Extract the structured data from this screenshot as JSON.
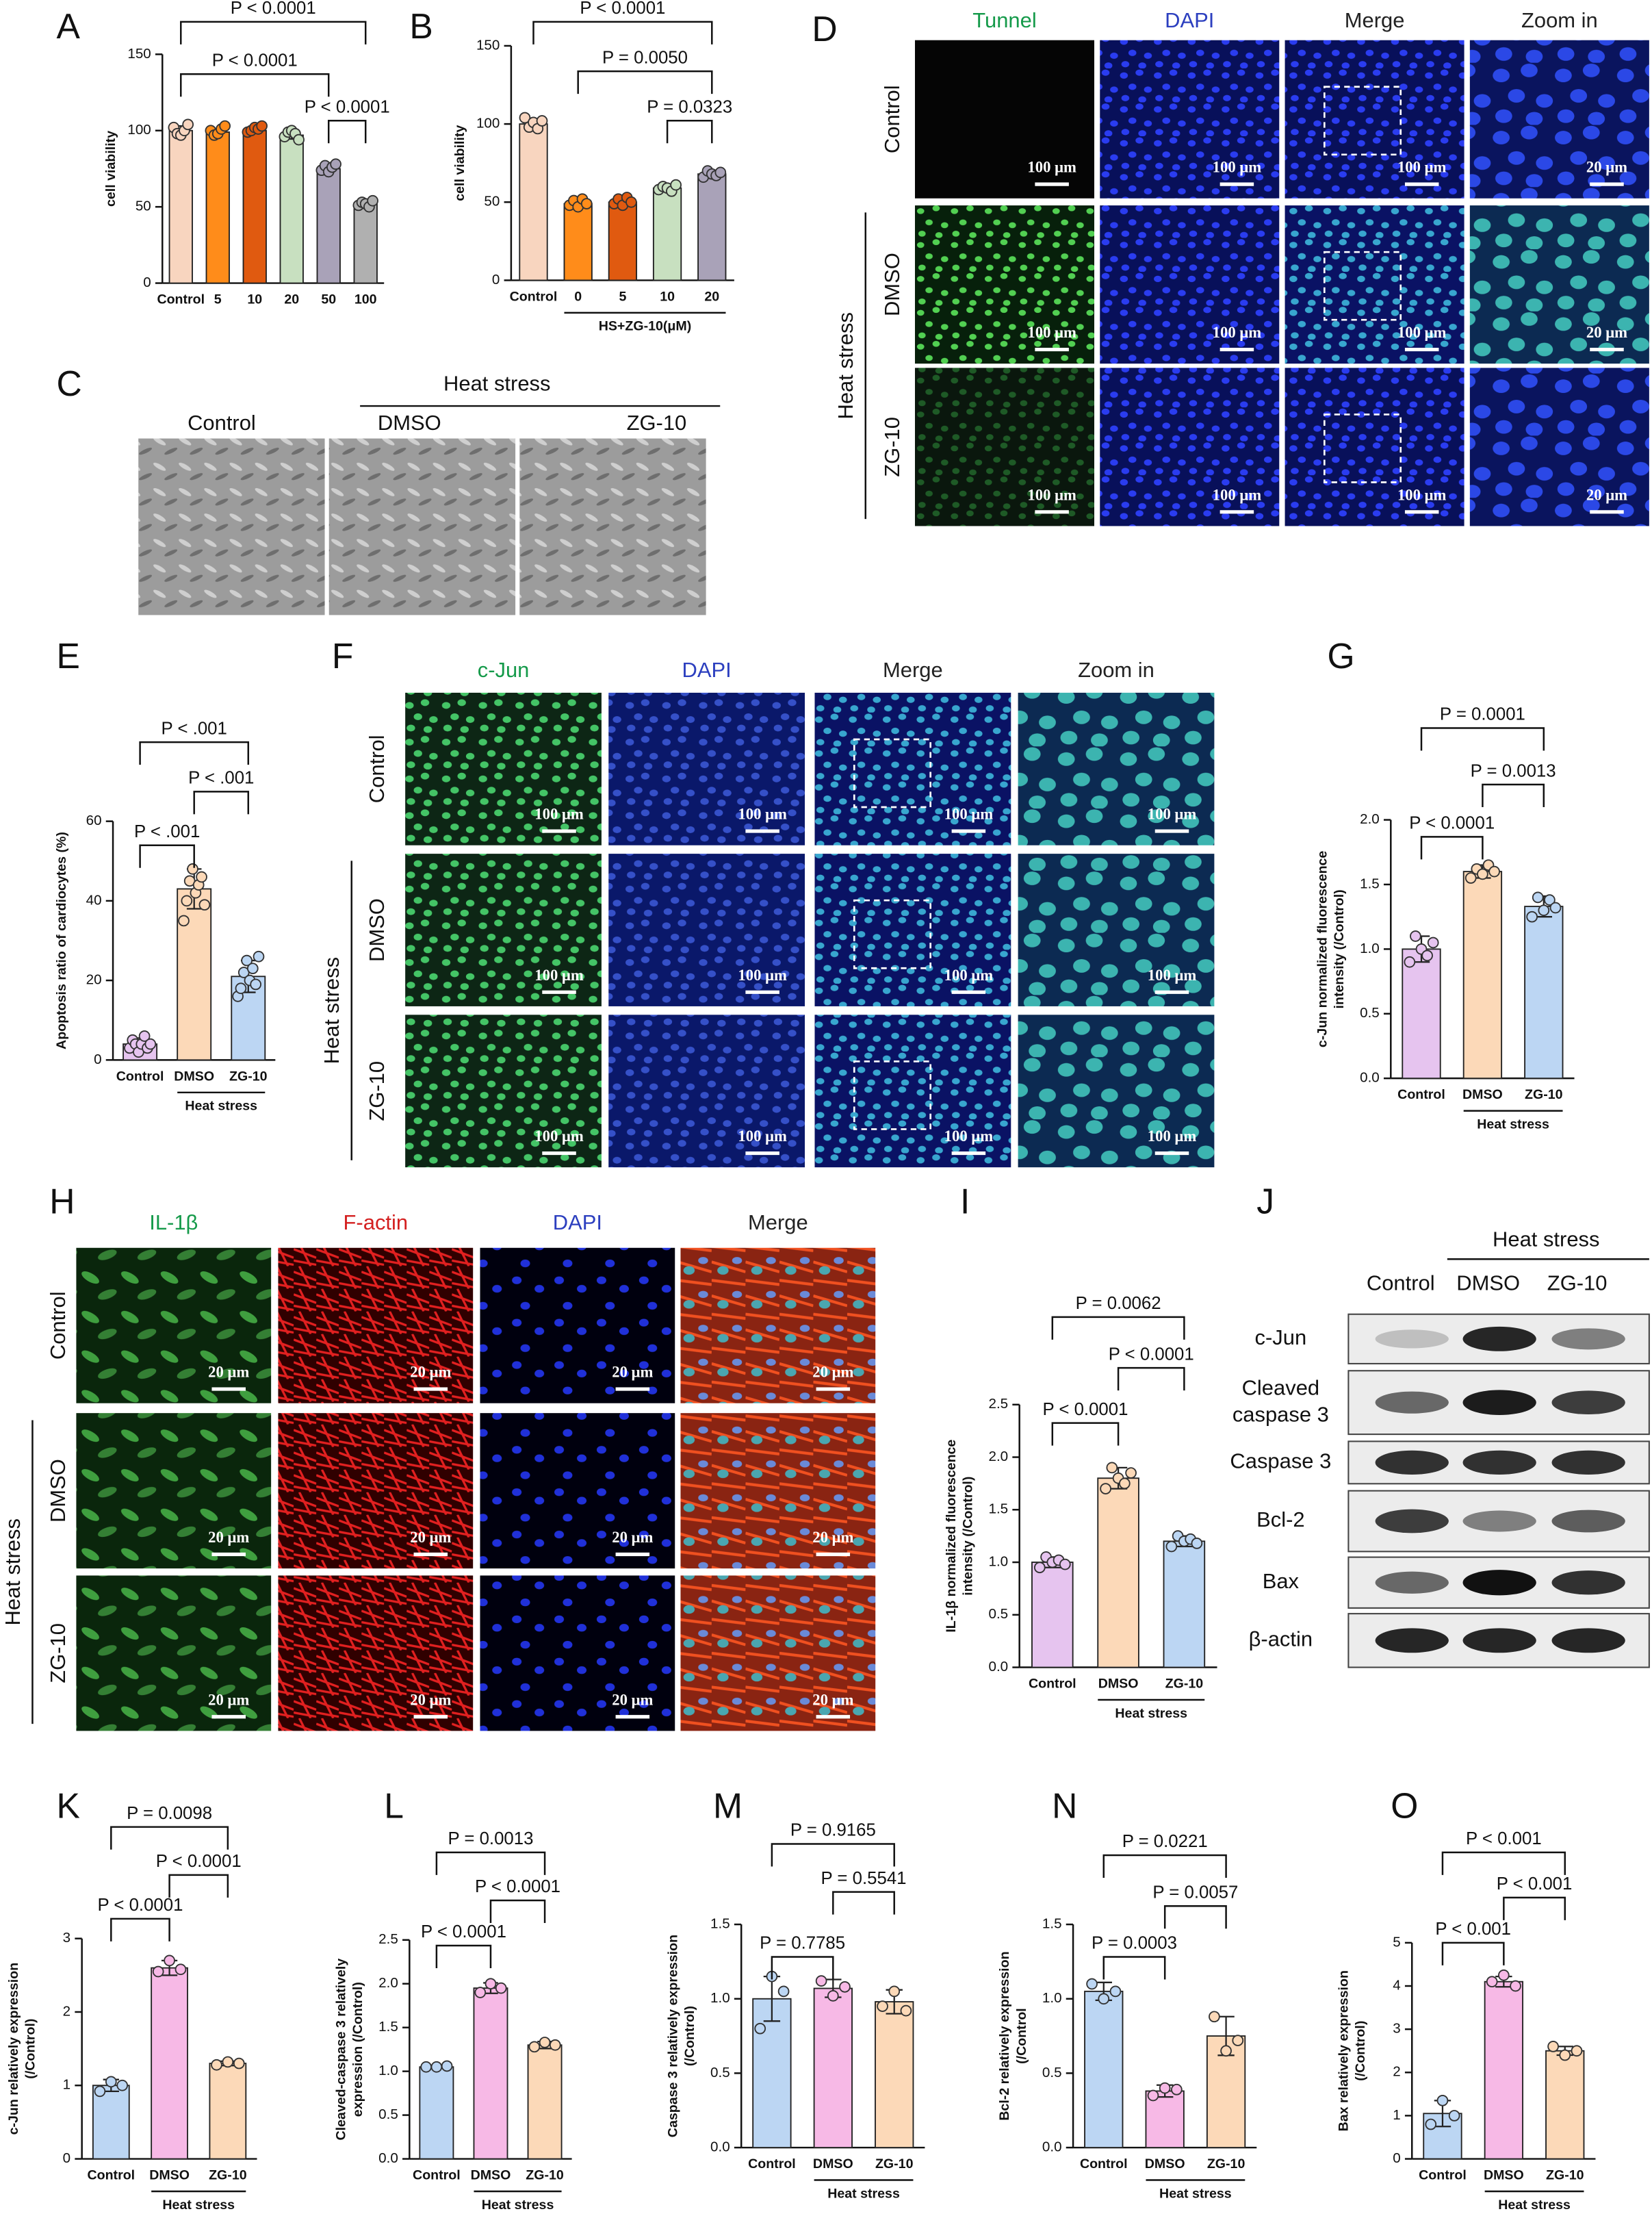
{
  "chart_data": [
    {
      "type": "bar",
      "panel": "A",
      "y_label": [
        "cell viability"
      ],
      "categories": [
        "Control",
        "5",
        "10",
        "20",
        "50",
        "100"
      ],
      "values": [
        100,
        99,
        100,
        97,
        75,
        52
      ],
      "errors": [
        3,
        2,
        1.5,
        2.5,
        2,
        1.5
      ],
      "points": [
        [
          102,
          98,
          97,
          100,
          104
        ],
        [
          100,
          97,
          98,
          101,
          103
        ],
        [
          99,
          100,
          102,
          101,
          103
        ],
        [
          96,
          99,
          100,
          98,
          94
        ],
        [
          74,
          77,
          73,
          76,
          78
        ],
        [
          51,
          53,
          52,
          50,
          54
        ]
      ],
      "colors": [
        "#f8d5bf",
        "#ff8c1a",
        "#e05a10",
        "#c8e0c0",
        "#a9a2b8",
        "#b0b0b0"
      ],
      "ylim": [
        0,
        150
      ],
      "yticks": [
        0,
        50,
        100,
        150
      ],
      "comparisons": [
        {
          "label": "P < 0.0001",
          "pair": [
            0,
            5
          ]
        },
        {
          "label": "P < 0.0001",
          "pair": [
            0,
            4
          ]
        },
        {
          "label": "P < 0.0001",
          "pair": [
            4,
            5
          ]
        }
      ]
    },
    {
      "type": "bar",
      "panel": "B",
      "y_label": [
        "cell viability"
      ],
      "categories": [
        "Control",
        "0",
        "5",
        "10",
        "20"
      ],
      "values": [
        100,
        49,
        50,
        59,
        68
      ],
      "errors": [
        3,
        2,
        2,
        1.5,
        1.5
      ],
      "points": [
        [
          104,
          98,
          101,
          97,
          102
        ],
        [
          48,
          51,
          47,
          52,
          49
        ],
        [
          49,
          52,
          48,
          53,
          50
        ],
        [
          58,
          60,
          59,
          57,
          61
        ],
        [
          66,
          70,
          68,
          67,
          69
        ]
      ],
      "colors": [
        "#f8d5bf",
        "#ff8c1a",
        "#e05a10",
        "#c8e0c0",
        "#a9a2b8"
      ],
      "ylim": [
        0,
        150
      ],
      "yticks": [
        0,
        50,
        100,
        150
      ],
      "group_label": "HS+ZG-10(μM)",
      "comparisons": [
        {
          "label": "P < 0.0001",
          "pair": [
            0,
            4
          ]
        },
        {
          "label": "P = 0.0050",
          "pair": [
            1,
            4
          ]
        },
        {
          "label": "P = 0.0323",
          "pair": [
            3,
            4
          ]
        }
      ]
    },
    {
      "type": "bar",
      "panel": "E",
      "y_label": [
        "Apoptosis ratio of cardiocytes (%)"
      ],
      "categories": [
        "Control",
        "DMSO",
        "ZG-10"
      ],
      "values": [
        4,
        43,
        21
      ],
      "errors": [
        1.5,
        5,
        4
      ],
      "points": [
        [
          3,
          5,
          4,
          2,
          4,
          6,
          3,
          4
        ],
        [
          35,
          40,
          45,
          48,
          42,
          44,
          46,
          39
        ],
        [
          16,
          18,
          22,
          25,
          20,
          23,
          19,
          26
        ]
      ],
      "colors": [
        "#e6c4ef",
        "#fcd9b8",
        "#bcd6f3"
      ],
      "ylim": [
        0,
        60
      ],
      "yticks": [
        0,
        20,
        40,
        60
      ],
      "group_label": "Heat stress",
      "comparisons": [
        {
          "label": "P < .001",
          "pair": [
            0,
            2
          ]
        },
        {
          "label": "P < .001",
          "pair": [
            1,
            2
          ]
        },
        {
          "label": "P < .001",
          "pair": [
            0,
            1
          ]
        }
      ]
    },
    {
      "type": "bar",
      "panel": "G",
      "y_label": [
        "c-Jun normalized fluorescence",
        "intensity (/Control)"
      ],
      "categories": [
        "Control",
        "DMSO",
        "ZG-10"
      ],
      "values": [
        1.0,
        1.6,
        1.33
      ],
      "errors": [
        0.1,
        0.05,
        0.08
      ],
      "points": [
        [
          0.9,
          1.1,
          1.0,
          0.95,
          1.05
        ],
        [
          1.55,
          1.62,
          1.58,
          1.65,
          1.6
        ],
        [
          1.25,
          1.4,
          1.3,
          1.38,
          1.32
        ]
      ],
      "colors": [
        "#e6c4ef",
        "#fcd9b8",
        "#bcd6f3"
      ],
      "ylim": [
        0,
        2
      ],
      "yticks": [
        {
          "value": 0,
          "label": "0.0"
        },
        {
          "value": 0.5,
          "label": "0.5"
        },
        {
          "value": 1,
          "label": "1.0"
        },
        {
          "value": 1.5,
          "label": "1.5"
        },
        {
          "value": 2,
          "label": "2.0"
        }
      ],
      "group_label": "Heat stress",
      "comparisons": [
        {
          "label": "P = 0.0001",
          "pair": [
            0,
            2
          ]
        },
        {
          "label": "P = 0.0013",
          "pair": [
            1,
            2
          ]
        },
        {
          "label": "P < 0.0001",
          "pair": [
            0,
            1
          ]
        }
      ]
    },
    {
      "type": "bar",
      "panel": "I",
      "y_label": [
        "IL-1β  normalized fluorescence",
        "intensity (/Control)"
      ],
      "categories": [
        "Control",
        "DMSO",
        "ZG-10"
      ],
      "values": [
        1.0,
        1.8,
        1.2
      ],
      "errors": [
        0.05,
        0.1,
        0.05
      ],
      "points": [
        [
          0.95,
          1.05,
          1.0,
          1.02,
          0.98
        ],
        [
          1.7,
          1.9,
          1.8,
          1.75,
          1.85
        ],
        [
          1.15,
          1.25,
          1.2,
          1.22,
          1.18
        ]
      ],
      "colors": [
        "#e6c4ef",
        "#fcd9b8",
        "#bcd6f3"
      ],
      "ylim": [
        0,
        2.5
      ],
      "yticks": [
        {
          "value": 0,
          "label": "0.0"
        },
        {
          "value": 0.5,
          "label": "0.5"
        },
        {
          "value": 1,
          "label": "1.0"
        },
        {
          "value": 1.5,
          "label": "1.5"
        },
        {
          "value": 2,
          "label": "2.0"
        },
        {
          "value": 2.5,
          "label": "2.5"
        }
      ],
      "group_label": "Heat stress",
      "comparisons": [
        {
          "label": "P = 0.0062",
          "pair": [
            0,
            2
          ]
        },
        {
          "label": "P < 0.0001",
          "pair": [
            1,
            2
          ]
        },
        {
          "label": "P < 0.0001",
          "pair": [
            0,
            1
          ]
        }
      ]
    },
    {
      "type": "bar",
      "panel": "K",
      "y_label": [
        "c-Jun relatively expression",
        "(/Control)"
      ],
      "categories": [
        "Control",
        "DMSO",
        "ZG-10"
      ],
      "values": [
        1.0,
        2.6,
        1.3
      ],
      "errors": [
        0.08,
        0.1,
        0.03
      ],
      "points": [
        [
          0.92,
          1.05,
          1.0
        ],
        [
          2.55,
          2.7,
          2.58
        ],
        [
          1.28,
          1.32,
          1.3
        ]
      ],
      "colors": [
        "#bcd6f3",
        "#f7b9e6",
        "#fcd9b8"
      ],
      "ylim": [
        0,
        3
      ],
      "yticks": [
        0,
        1,
        2,
        3
      ],
      "group_label": "Heat stress",
      "comparisons": [
        {
          "label": "P = 0.0098",
          "pair": [
            0,
            2
          ]
        },
        {
          "label": "P < 0.0001",
          "pair": [
            1,
            2
          ]
        },
        {
          "label": "P < 0.0001",
          "pair": [
            0,
            1
          ]
        }
      ]
    },
    {
      "type": "bar",
      "panel": "L",
      "y_label": [
        "Cleaved-caspase 3 relatively",
        "expression (/Control)"
      ],
      "categories": [
        "Control",
        "DMSO",
        "ZG-10"
      ],
      "values": [
        1.05,
        1.95,
        1.3
      ],
      "errors": [
        0.01,
        0.06,
        0.04
      ],
      "points": [
        [
          1.05,
          1.05,
          1.06
        ],
        [
          1.9,
          2.0,
          1.95
        ],
        [
          1.28,
          1.33,
          1.3
        ]
      ],
      "colors": [
        "#bcd6f3",
        "#f7b9e6",
        "#fcd9b8"
      ],
      "ylim": [
        0,
        2.5
      ],
      "yticks": [
        {
          "value": 0,
          "label": "0.0"
        },
        {
          "value": 0.5,
          "label": "0.5"
        },
        {
          "value": 1,
          "label": "1.0"
        },
        {
          "value": 1.5,
          "label": "1.5"
        },
        {
          "value": 2,
          "label": "2.0"
        },
        {
          "value": 2.5,
          "label": "2.5"
        }
      ],
      "group_label": "Heat stress",
      "comparisons": [
        {
          "label": "P = 0.0013",
          "pair": [
            0,
            2
          ]
        },
        {
          "label": "P < 0.0001",
          "pair": [
            1,
            2
          ]
        },
        {
          "label": "P < 0.0001",
          "pair": [
            0,
            1
          ]
        }
      ]
    },
    {
      "type": "bar",
      "panel": "M",
      "y_label": [
        "Caspase 3 relatively expression",
        "(/Control)"
      ],
      "categories": [
        "Control",
        "DMSO",
        "ZG-10"
      ],
      "values": [
        1.0,
        1.07,
        0.98
      ],
      "errors": [
        0.15,
        0.06,
        0.08
      ],
      "points": [
        [
          0.8,
          1.15,
          1.05
        ],
        [
          1.12,
          1.02,
          1.08
        ],
        [
          0.95,
          1.05,
          0.92
        ]
      ],
      "colors": [
        "#bcd6f3",
        "#f7b9e6",
        "#fcd9b8"
      ],
      "ylim": [
        0,
        1.5
      ],
      "yticks": [
        {
          "value": 0,
          "label": "0.0"
        },
        {
          "value": 0.5,
          "label": "0.5"
        },
        {
          "value": 1,
          "label": "1.0"
        },
        {
          "value": 1.5,
          "label": "1.5"
        }
      ],
      "group_label": "Heat stress",
      "comparisons": [
        {
          "label": "P = 0.9165",
          "pair": [
            0,
            2
          ]
        },
        {
          "label": "P = 0.5541",
          "pair": [
            1,
            2
          ]
        },
        {
          "label": "P = 0.7785",
          "pair": [
            0,
            1
          ]
        }
      ]
    },
    {
      "type": "bar",
      "panel": "N",
      "y_label": [
        "Bcl-2 relatively expression",
        "(/Control"
      ],
      "categories": [
        "Control",
        "DMSO",
        "ZG-10"
      ],
      "values": [
        1.05,
        0.38,
        0.75
      ],
      "errors": [
        0.06,
        0.04,
        0.13
      ],
      "points": [
        [
          1.1,
          1.0,
          1.05
        ],
        [
          0.35,
          0.4,
          0.39
        ],
        [
          0.88,
          0.65,
          0.72
        ]
      ],
      "colors": [
        "#bcd6f3",
        "#f7b9e6",
        "#fcd9b8"
      ],
      "ylim": [
        0,
        1.5
      ],
      "yticks": [
        {
          "value": 0,
          "label": "0.0"
        },
        {
          "value": 0.5,
          "label": "0.5"
        },
        {
          "value": 1,
          "label": "1.0"
        },
        {
          "value": 1.5,
          "label": "1.5"
        }
      ],
      "group_label": "Heat stress",
      "comparisons": [
        {
          "label": "P = 0.0221",
          "pair": [
            0,
            2
          ]
        },
        {
          "label": "P = 0.0057",
          "pair": [
            1,
            2
          ]
        },
        {
          "label": "P = 0.0003",
          "pair": [
            0,
            1
          ]
        }
      ]
    },
    {
      "type": "bar",
      "panel": "O",
      "y_label": [
        "Bax relatively expression",
        "(/Control)"
      ],
      "categories": [
        "Control",
        "DMSO",
        "ZG-10"
      ],
      "values": [
        1.05,
        4.1,
        2.5
      ],
      "errors": [
        0.3,
        0.12,
        0.1
      ],
      "points": [
        [
          0.8,
          1.35,
          1.0
        ],
        [
          4.1,
          4.25,
          4.0
        ],
        [
          2.6,
          2.4,
          2.5
        ]
      ],
      "colors": [
        "#bcd6f3",
        "#f7b9e6",
        "#fcd9b8"
      ],
      "ylim": [
        0,
        5
      ],
      "yticks": [
        0,
        1,
        2,
        3,
        4,
        5
      ],
      "group_label": "Heat stress",
      "comparisons": [
        {
          "label": "P < 0.001",
          "pair": [
            0,
            2
          ]
        },
        {
          "label": "P < 0.001",
          "pair": [
            1,
            2
          ]
        },
        {
          "label": "P < 0.001",
          "pair": [
            0,
            1
          ]
        }
      ]
    }
  ],
  "figure": {
    "C": {
      "letter": "C",
      "group": "Heat stress",
      "columns": [
        "Control",
        "DMSO",
        "ZG-10"
      ]
    },
    "D": {
      "letter": "D",
      "columns": [
        "Tunnel",
        "DAPI",
        "Merge",
        "Zoom in"
      ],
      "rows": [
        "Control",
        "DMSO",
        "ZG-10"
      ],
      "group": "Heat stress",
      "scale": "100 μm",
      "zoom_scale": "20 μm"
    },
    "F": {
      "letter": "F",
      "columns": [
        "c-Jun",
        "DAPI",
        "Merge",
        "Zoom in"
      ],
      "rows": [
        "Control",
        "DMSO",
        "ZG-10"
      ],
      "group": "Heat stress",
      "scale": "100 μm"
    },
    "H": {
      "letter": "H",
      "columns": [
        "IL-1β",
        "F-actin",
        "DAPI",
        "Merge"
      ],
      "rows": [
        "Control",
        "DMSO",
        "ZG-10"
      ],
      "group": "Heat stress",
      "scale": "20 μm"
    },
    "J": {
      "letter": "J",
      "group": "Heat stress",
      "columns": [
        "Control",
        "DMSO",
        "ZG-10"
      ],
      "rows": [
        [
          "c-Jun"
        ],
        [
          "Cleaved",
          "caspase 3"
        ],
        [
          "Caspase 3"
        ],
        [
          "Bcl-2"
        ],
        [
          "Bax"
        ],
        [
          "β-actin"
        ]
      ]
    }
  }
}
